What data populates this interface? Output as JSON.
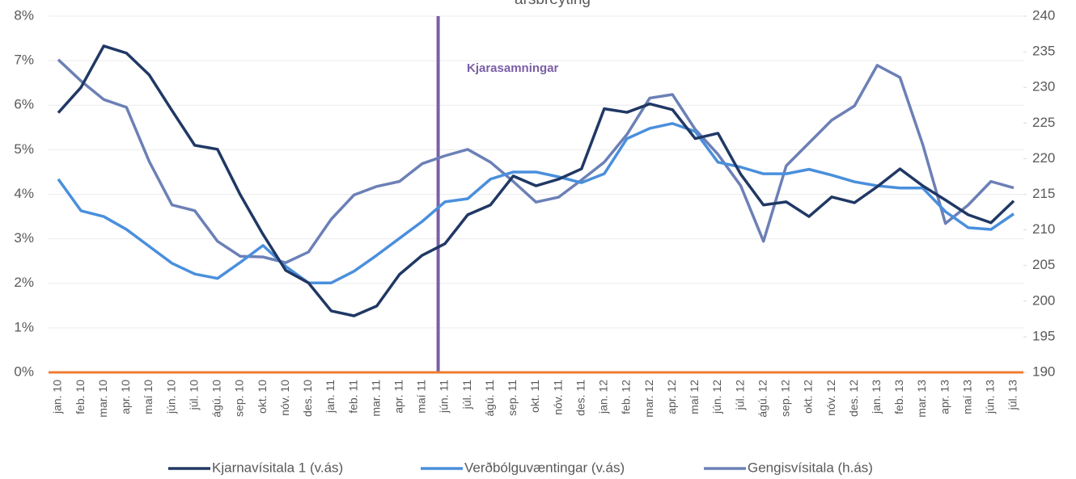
{
  "chart_data": {
    "type": "line",
    "title": "ársbreyting",
    "annotation": "Kjarasamningar",
    "categories": [
      "jan. 10",
      "feb. 10",
      "mar. 10",
      "apr. 10",
      "maí 10",
      "jún. 10",
      "júl. 10",
      "ágú. 10",
      "sep. 10",
      "okt. 10",
      "nóv. 10",
      "des. 10",
      "jan. 11",
      "feb. 11",
      "mar. 11",
      "apr. 11",
      "maí 11",
      "jún. 11",
      "júl. 11",
      "ágú. 11",
      "sep. 11",
      "okt. 11",
      "nóv. 11",
      "des. 11",
      "jan. 12",
      "feb. 12",
      "mar. 12",
      "apr. 12",
      "maí 12",
      "jún. 12",
      "júl. 12",
      "ágú. 12",
      "sep. 12",
      "okt. 12",
      "nóv. 12",
      "des. 12",
      "jan. 13",
      "feb. 13",
      "mar. 13",
      "apr. 13",
      "maí 13",
      "jún. 13",
      "júl. 13"
    ],
    "series": [
      {
        "name": "Kjarnavísitala 1 (v.ás)",
        "color": "#203864",
        "values": [
          5.83,
          6.4,
          7.33,
          7.17,
          6.68,
          5.88,
          5.1,
          5.01,
          3.99,
          3.1,
          2.29,
          2.01,
          1.38,
          1.27,
          1.49,
          2.2,
          2.63,
          2.89,
          3.54,
          3.76,
          4.41,
          4.19,
          4.34,
          4.57,
          5.92,
          5.84,
          6.03,
          5.9,
          5.25,
          5.37,
          4.45,
          3.76,
          3.83,
          3.5,
          3.94,
          3.81,
          4.17,
          4.57,
          4.19,
          3.87,
          3.54,
          3.36,
          3.85
        ]
      },
      {
        "name": "Verðbólguvæntingar (v.ás)",
        "color": "#4a8fdc",
        "values": [
          4.34,
          3.63,
          3.5,
          3.21,
          2.83,
          2.45,
          2.21,
          2.11,
          2.47,
          2.85,
          2.38,
          2.01,
          2.01,
          2.27,
          2.63,
          3.01,
          3.39,
          3.83,
          3.9,
          4.34,
          4.5,
          4.5,
          4.39,
          4.26,
          4.46,
          5.25,
          5.48,
          5.59,
          5.41,
          4.72,
          4.61,
          4.46,
          4.46,
          4.56,
          4.43,
          4.28,
          4.19,
          4.14,
          4.14,
          3.61,
          3.25,
          3.21,
          3.56
        ]
      },
      {
        "name": "Gengisvísitala (h.ás)",
        "color": "#6c80b6",
        "axis": "y2",
        "values": [
          233.9,
          230.9,
          228.3,
          227.2,
          219.6,
          213.5,
          212.7,
          208.4,
          206.3,
          206.2,
          205.4,
          206.9,
          211.5,
          214.9,
          216.1,
          216.8,
          219.3,
          220.4,
          221.3,
          219.5,
          216.8,
          213.9,
          214.6,
          217,
          219.5,
          223.4,
          228.5,
          229,
          224.1,
          220.6,
          216.2,
          208.4,
          219,
          222.2,
          225.4,
          227.4,
          233.1,
          231.4,
          222,
          210.9,
          213.5,
          216.8,
          215.9
        ]
      }
    ],
    "ylim": [
      0,
      8
    ],
    "yticks": [
      {
        "value": 0,
        "label": "0%"
      },
      {
        "value": 1,
        "label": "1%"
      },
      {
        "value": 2,
        "label": "2%"
      },
      {
        "value": 3,
        "label": "3%"
      },
      {
        "value": 4,
        "label": "4%"
      },
      {
        "value": 5,
        "label": "5%"
      },
      {
        "value": 6,
        "label": "6%"
      },
      {
        "value": 7,
        "label": "7%"
      },
      {
        "value": 8,
        "label": "8%"
      }
    ],
    "y2lim": [
      190,
      240
    ],
    "y2ticks": [
      190,
      195,
      200,
      205,
      210,
      215,
      220,
      225,
      230,
      235,
      240
    ],
    "grid": true
  }
}
